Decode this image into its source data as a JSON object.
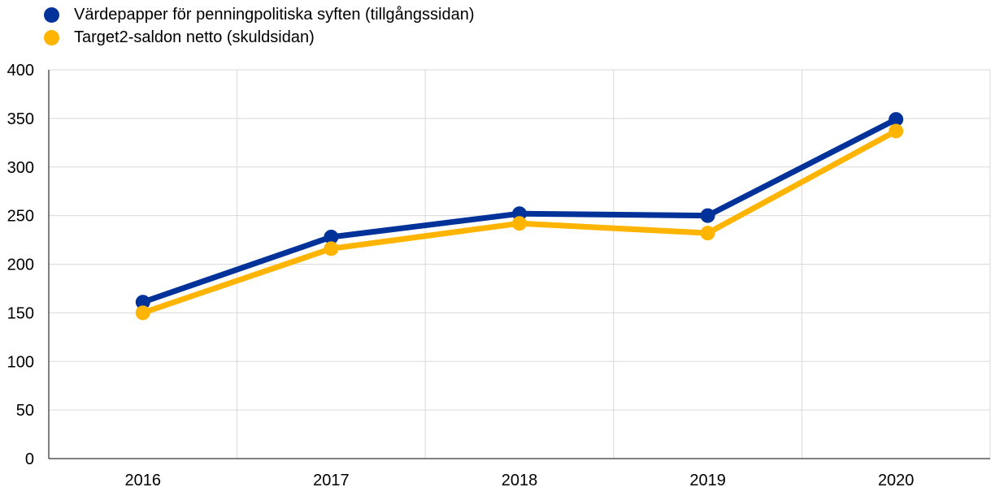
{
  "chart_data": {
    "type": "line",
    "x": [
      "2016",
      "2017",
      "2018",
      "2019",
      "2020"
    ],
    "ylim": [
      0,
      400
    ],
    "yticks": [
      0,
      50,
      100,
      150,
      200,
      250,
      300,
      350,
      400
    ],
    "grid": true,
    "legend_position": "top-left",
    "series": [
      {
        "name": "Värdepapper för penningpolitiska syften (tillgångssidan)",
        "color": "#003299",
        "values": [
          161,
          228,
          252,
          250,
          349
        ]
      },
      {
        "name": "Target2-saldon netto (skuldsidan)",
        "color": "#FFB400",
        "values": [
          150,
          216,
          242,
          232,
          337
        ]
      }
    ]
  }
}
